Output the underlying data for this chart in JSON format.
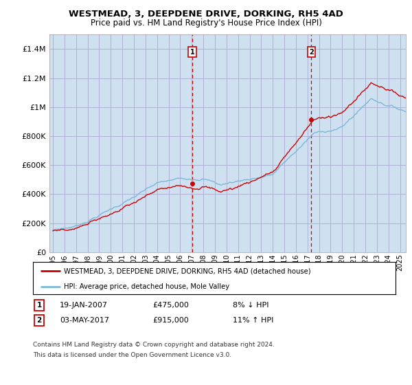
{
  "title": "WESTMEAD, 3, DEEPDENE DRIVE, DORKING, RH5 4AD",
  "subtitle": "Price paid vs. HM Land Registry's House Price Index (HPI)",
  "legend_line1": "WESTMEAD, 3, DEEPDENE DRIVE, DORKING, RH5 4AD (detached house)",
  "legend_line2": "HPI: Average price, detached house, Mole Valley",
  "sale1_label": "1",
  "sale1_date": "19-JAN-2007",
  "sale1_price": "£475,000",
  "sale1_hpi": "8% ↓ HPI",
  "sale1_year": 2007.05,
  "sale1_value": 475000,
  "sale2_label": "2",
  "sale2_date": "03-MAY-2017",
  "sale2_price": "£915,000",
  "sale2_hpi": "11% ↑ HPI",
  "sale2_year": 2017.33,
  "sale2_value": 915000,
  "hpi_line_color": "#7ab8d9",
  "price_line_color": "#cc0000",
  "marker_color": "#cc0000",
  "vline_color": "#cc0000",
  "plot_bg_color": "#cfe0f0",
  "fig_bg_color": "#ffffff",
  "grid_color": "#aaaacc",
  "yticks": [
    0,
    200000,
    400000,
    600000,
    800000,
    1000000,
    1200000,
    1400000
  ],
  "ylim": [
    0,
    1500000
  ],
  "xlim_start": 1994.7,
  "xlim_end": 2025.5,
  "footnote_line1": "Contains HM Land Registry data © Crown copyright and database right 2024.",
  "footnote_line2": "This data is licensed under the Open Government Licence v3.0."
}
